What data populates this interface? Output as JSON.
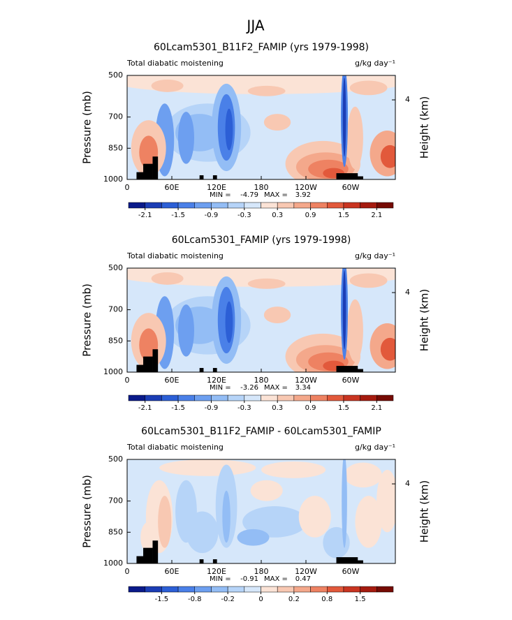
{
  "title": "JJA",
  "chart_data": [
    {
      "type": "contour",
      "title": "60Lcam5301_B11F2_FAMIP (yrs 1979-1998)",
      "left_label": "Total diabatic moistening",
      "units": "g/kg day⁻¹",
      "ylabel": "Pressure (mb)",
      "y2label": "Height (km)",
      "xlim": [
        0,
        360
      ],
      "xticks": [
        0,
        {
          "value": 60,
          "label": "60E"
        },
        {
          "value": 120,
          "label": "120E"
        },
        180,
        {
          "value": 240,
          "label": "120W"
        },
        {
          "value": 300,
          "label": "60W"
        }
      ],
      "ylim": [
        1000,
        500
      ],
      "yticks": [
        500,
        700,
        850,
        1000
      ],
      "y2ticks": [
        4
      ],
      "min_label": "MIN =",
      "min": -4.79,
      "max_label": "MAX =",
      "max": 3.92,
      "colorbar": {
        "ticks": [
          -2.1,
          -1.5,
          -0.9,
          -0.3,
          0.3,
          0.9,
          1.5,
          2.1
        ],
        "colors": [
          "#0a1a8a",
          "#1b3db5",
          "#2c5fd6",
          "#4a80e8",
          "#6d9ff0",
          "#93bdf5",
          "#b6d4f8",
          "#d6e7fa",
          "#fbe3d6",
          "#f8c8b2",
          "#f4a88b",
          "#ee8262",
          "#e2593b",
          "#c93521",
          "#a51b0f",
          "#760b04"
        ]
      }
    },
    {
      "type": "contour",
      "title": "60Lcam5301_FAMIP (yrs 1979-1998)",
      "left_label": "Total diabatic moistening",
      "units": "g/kg day⁻¹",
      "ylabel": "Pressure (mb)",
      "y2label": "Height (km)",
      "xlim": [
        0,
        360
      ],
      "xticks": [
        0,
        {
          "value": 60,
          "label": "60E"
        },
        {
          "value": 120,
          "label": "120E"
        },
        180,
        {
          "value": 240,
          "label": "120W"
        },
        {
          "value": 300,
          "label": "60W"
        }
      ],
      "ylim": [
        1000,
        500
      ],
      "yticks": [
        500,
        700,
        850,
        1000
      ],
      "y2ticks": [
        4
      ],
      "min_label": "MIN =",
      "min": -3.26,
      "max_label": "MAX =",
      "max": 3.34,
      "colorbar": {
        "ticks": [
          -2.1,
          -1.5,
          -0.9,
          -0.3,
          0.3,
          0.9,
          1.5,
          2.1
        ],
        "colors": [
          "#0a1a8a",
          "#1b3db5",
          "#2c5fd6",
          "#4a80e8",
          "#6d9ff0",
          "#93bdf5",
          "#b6d4f8",
          "#d6e7fa",
          "#fbe3d6",
          "#f8c8b2",
          "#f4a88b",
          "#ee8262",
          "#e2593b",
          "#c93521",
          "#a51b0f",
          "#760b04"
        ]
      }
    },
    {
      "type": "contour",
      "title": "60Lcam5301_B11F2_FAMIP - 60Lcam5301_FAMIP",
      "left_label": "Total diabatic moistening",
      "units": "g/kg day⁻¹",
      "ylabel": "Pressure (mb)",
      "y2label": "Height (km)",
      "xlim": [
        0,
        360
      ],
      "xticks": [
        0,
        {
          "value": 60,
          "label": "60E"
        },
        {
          "value": 120,
          "label": "120E"
        },
        180,
        {
          "value": 240,
          "label": "120W"
        },
        {
          "value": 300,
          "label": "60W"
        }
      ],
      "ylim": [
        1000,
        500
      ],
      "yticks": [
        500,
        700,
        850,
        1000
      ],
      "y2ticks": [
        4
      ],
      "min_label": "MIN =",
      "min": -0.91,
      "max_label": "MAX =",
      "max": 0.47,
      "colorbar": {
        "ticks": [
          -1.5,
          -0.8,
          -0.2,
          0,
          0.2,
          0.8,
          1.5
        ],
        "colors": [
          "#0a1a8a",
          "#1b3db5",
          "#2c5fd6",
          "#4a80e8",
          "#6d9ff0",
          "#93bdf5",
          "#b6d4f8",
          "#d6e7fa",
          "#fbe3d6",
          "#f8c8b2",
          "#f4a88b",
          "#ee8262",
          "#e2593b",
          "#c93521",
          "#a51b0f",
          "#760b04"
        ]
      }
    }
  ]
}
